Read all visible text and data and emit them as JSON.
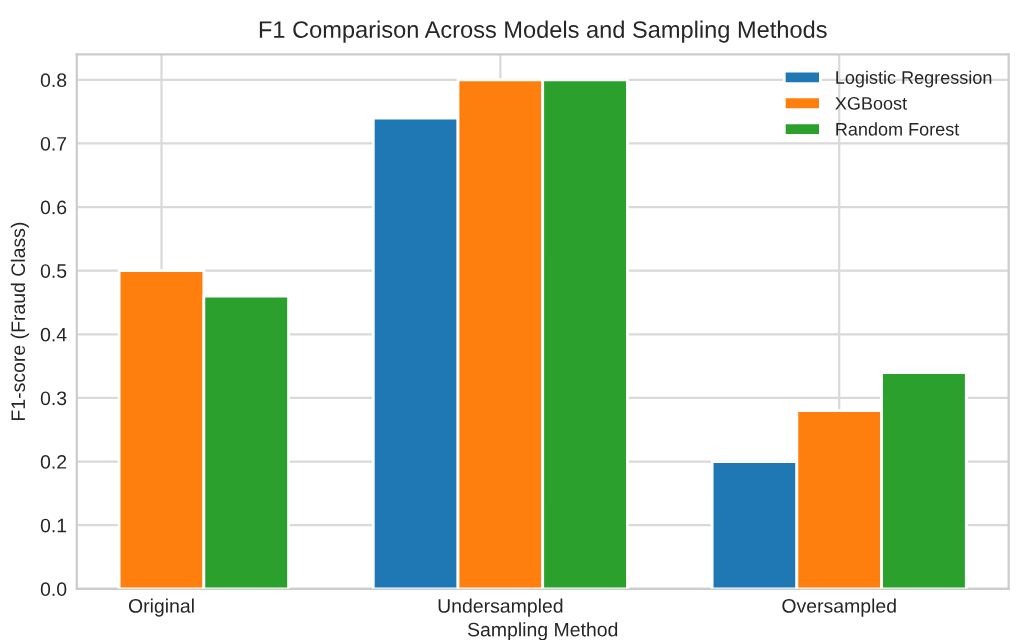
{
  "chart_data": {
    "type": "bar",
    "title": "F1 Comparison Across Models and Sampling Methods",
    "xlabel": "Sampling Method",
    "ylabel": "F1-score (Fraud Class)",
    "categories": [
      "Original",
      "Undersampled",
      "Oversampled"
    ],
    "series": [
      {
        "name": "Logistic Regression",
        "color": "#1f77b4",
        "values": [
          null,
          0.74,
          0.2
        ]
      },
      {
        "name": "XGBoost",
        "color": "#ff7f0e",
        "values": [
          0.5,
          0.8,
          0.28
        ]
      },
      {
        "name": "Random Forest",
        "color": "#2ca02c",
        "values": [
          0.46,
          0.8,
          0.34
        ]
      }
    ],
    "ylim": [
      0,
      0.84
    ],
    "yticks": [
      {
        "value": 0,
        "label": "0.0"
      },
      0.1,
      0.2,
      0.3,
      0.4,
      0.5,
      0.6,
      0.7,
      0.8
    ],
    "grid": true,
    "legend": "top right"
  }
}
